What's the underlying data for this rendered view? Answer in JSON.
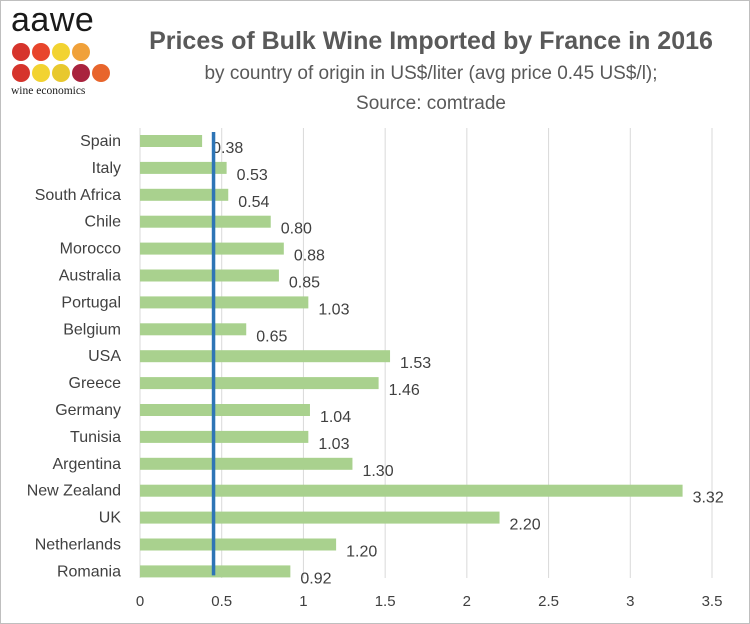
{
  "logo": {
    "word": "aawe",
    "subtitle": "wine economics",
    "dot_colors": [
      "#d6342c",
      "#e8452c",
      "#f2d331",
      "#f0a13a",
      "#d6342c",
      "#f2d331",
      "#e8c82e",
      "#a9233e",
      "#e8652c"
    ]
  },
  "chart_data": {
    "type": "bar",
    "orientation": "horizontal",
    "title": "Prices of Bulk Wine Imported by France in 2016",
    "subtitle_line1": "by country of origin in US$/liter (avg price 0.45 US$/l);",
    "subtitle_line2": "Source: comtrade",
    "categories": [
      "Spain",
      "Italy",
      "South Africa",
      "Chile",
      "Morocco",
      "Australia",
      "Portugal",
      "Belgium",
      "USA",
      "Greece",
      "Germany",
      "Tunisia",
      "Argentina",
      "New Zealand",
      "UK",
      "Netherlands",
      "Romania"
    ],
    "values": [
      0.38,
      0.53,
      0.54,
      0.8,
      0.88,
      0.85,
      1.03,
      0.65,
      1.53,
      1.46,
      1.04,
      1.03,
      1.3,
      3.32,
      2.2,
      1.2,
      0.92
    ],
    "value_labels": [
      "0.38",
      "0.53",
      "0.54",
      "0.80",
      "0.88",
      "0.85",
      "1.03",
      "0.65",
      "1.53",
      "1.46",
      "1.04",
      "1.03",
      "1.30",
      "3.32",
      "2.20",
      "1.20",
      "0.92"
    ],
    "x_ticks": [
      "0",
      "0.5",
      "1",
      "1.5",
      "2",
      "2.5",
      "3",
      "3.5"
    ],
    "xlim": [
      0,
      3.5
    ],
    "reference_line": {
      "value": 0.45,
      "label": "avg price"
    },
    "grid": true,
    "colors": {
      "bar": "#a9d18e",
      "reference": "#2e75b6",
      "grid": "#d9d9d9",
      "text": "#404040"
    }
  }
}
